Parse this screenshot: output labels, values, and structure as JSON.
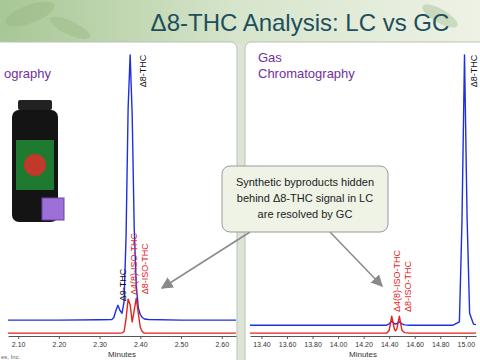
{
  "title": "Δ8-THC Analysis: LC vs GC",
  "annotation": [
    "Synthetic byproducts hidden",
    "behind Δ8-THC signal in LC",
    "are resolved by GC"
  ],
  "footer": "es, Inc.",
  "chart_data": [
    {
      "type": "line",
      "title": [
        "ography"
      ],
      "x_label": "Minutes",
      "x": [
        2.075,
        2.2,
        2.3,
        2.33,
        2.335,
        2.34,
        2.345,
        2.35,
        2.355,
        2.36,
        2.365,
        2.37,
        2.375,
        2.38,
        2.385,
        2.39,
        2.395,
        2.4,
        2.405,
        2.41,
        2.42,
        2.5,
        2.635
      ],
      "xlim": [
        2.075,
        2.635
      ],
      "xticks": [
        {
          "value": 2.1,
          "label": "2.10"
        },
        {
          "value": 2.2,
          "label": "2.20"
        },
        {
          "value": 2.3,
          "label": "2.30"
        },
        {
          "value": 2.4,
          "label": "2.40"
        },
        {
          "value": 2.5,
          "label": "2.50"
        },
        {
          "value": 2.6,
          "label": "2.60"
        }
      ],
      "ylim": [
        0,
        100
      ],
      "tick_labels": "x",
      "series": [
        {
          "color": "#1f2fe0",
          "values": [
            5.6,
            5.6,
            5.7,
            5.8,
            6.5,
            9.0,
            10.8,
            9.0,
            8.0,
            12.0,
            35.0,
            80.0,
            99.0,
            78.0,
            38.0,
            18.0,
            10.0,
            7.5,
            6.5,
            6.0,
            5.8,
            5.6,
            5.6
          ]
        },
        {
          "color": "#e3231c",
          "values": [
            1,
            1,
            1,
            1,
            1,
            1,
            1,
            1,
            1.1,
            1.5,
            6,
            13,
            11,
            5,
            9,
            13.3,
            8,
            3,
            1.5,
            1,
            1,
            1,
            1
          ]
        }
      ],
      "annotations": [
        {
          "text": "Δ9-THC",
          "x": 2.345,
          "y": 10.8,
          "color": "#111111"
        },
        {
          "text": "Δ8-THC",
          "x": 2.375,
          "y": 99,
          "color": "#111111"
        },
        {
          "text": "Δ4(8)-ISO-THC",
          "x": 2.37,
          "y": 13,
          "color": "#e3231c"
        },
        {
          "text": "Δ8-ISO-THC",
          "x": 2.39,
          "y": 13.3,
          "color": "#e3231c"
        }
      ]
    },
    {
      "type": "line",
      "title": [
        "Gas",
        "Chromatography"
      ],
      "x_label": "Minutes",
      "x": [
        13.31,
        13.8,
        14.3,
        14.38,
        14.4,
        14.42,
        14.44,
        14.45,
        14.46,
        14.48,
        14.5,
        14.52,
        14.56,
        14.9,
        14.95,
        14.97,
        14.99,
        15.01,
        15.03,
        15.06,
        15.08
      ],
      "xlim": [
        13.31,
        15.08
      ],
      "xticks": [
        {
          "value": 13.4,
          "label": "13.40"
        },
        {
          "value": 13.6,
          "label": "13.60"
        },
        {
          "value": 13.8,
          "label": "13.80"
        },
        {
          "value": 14,
          "label": "14.00"
        },
        {
          "value": 14.2,
          "label": "14.20"
        },
        {
          "value": 14.4,
          "label": "14.40"
        },
        {
          "value": 14.6,
          "label": "14.60"
        },
        {
          "value": 14.8,
          "label": "14.80"
        },
        {
          "value": 15,
          "label": "15.00"
        }
      ],
      "ylim": [
        0,
        100
      ],
      "tick_labels": "x",
      "series": [
        {
          "color": "#1f2fe0",
          "values": [
            3.8,
            3.8,
            3.8,
            3.8,
            4.3,
            5.2,
            4.4,
            4.2,
            4.4,
            5.0,
            4.3,
            3.9,
            3.8,
            3.8,
            5.0,
            40.0,
            99.0,
            42.0,
            8.0,
            4.2,
            4.0
          ]
        },
        {
          "color": "#e3231c",
          "values": [
            1,
            1,
            1,
            1,
            2,
            7,
            2.5,
            1.8,
            2.5,
            7,
            2,
            1.2,
            1,
            1,
            1,
            1,
            1,
            1,
            1,
            1,
            1
          ]
        }
      ],
      "annotations": [
        {
          "text": "Δ4(8)-ISO-THC",
          "x": 14.42,
          "y": 7,
          "color": "#e3231c"
        },
        {
          "text": "Δ8-ISO-THC",
          "x": 14.48,
          "y": 7,
          "color": "#e3231c"
        },
        {
          "text": "Δ8-THC",
          "x": 14.99,
          "y": 99,
          "color": "#111111"
        }
      ]
    }
  ]
}
